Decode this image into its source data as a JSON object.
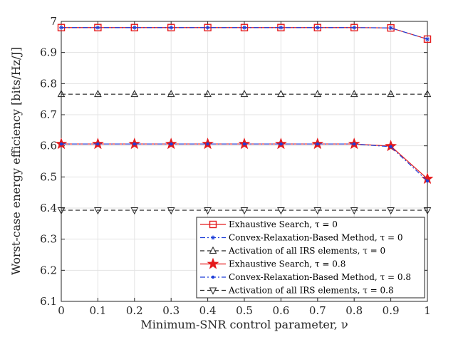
{
  "chart_data": {
    "type": "line",
    "xlabel": "Minimum-SNR control parameter, ν",
    "ylabel": "Worst-case energy efficiency [bits/Hz/J]",
    "xlim": [
      0,
      1
    ],
    "ylim": [
      6.1,
      7
    ],
    "x": [
      0,
      0.1,
      0.2,
      0.3,
      0.4,
      0.5,
      0.6,
      0.7,
      0.8,
      0.9,
      1
    ],
    "xticks": [
      "0",
      "0.1",
      "0.2",
      "0.3",
      "0.4",
      "0.5",
      "0.6",
      "0.7",
      "0.8",
      "0.9",
      "1"
    ],
    "yticks": [
      "6.1",
      "6.2",
      "6.3",
      "6.4",
      "6.5",
      "6.6",
      "6.7",
      "6.8",
      "6.9",
      "7"
    ],
    "grid": true,
    "legend_position": "bottom-right",
    "series": [
      {
        "name": "Exhaustive Search, τ = 0",
        "color": "#e41a1c",
        "dash": "solid",
        "marker": "square",
        "values": [
          6.98,
          6.98,
          6.98,
          6.98,
          6.98,
          6.98,
          6.98,
          6.98,
          6.98,
          6.979,
          6.943
        ]
      },
      {
        "name": "Convex-Relaxation-Based Method, τ = 0",
        "color": "#1f3fd8",
        "dash": "dashdot",
        "marker": "asterisk",
        "values": [
          6.98,
          6.98,
          6.98,
          6.98,
          6.98,
          6.98,
          6.98,
          6.98,
          6.98,
          6.979,
          6.943
        ]
      },
      {
        "name": "Activation of all IRS elements, τ = 0",
        "color": "#222222",
        "dash": "dashed",
        "marker": "triangle-up",
        "values": [
          6.766,
          6.766,
          6.766,
          6.766,
          6.766,
          6.766,
          6.766,
          6.766,
          6.766,
          6.766,
          6.766
        ]
      },
      {
        "name": "Exhaustive Search, τ = 0.8",
        "color": "#e41a1c",
        "dash": "solid",
        "marker": "star",
        "values": [
          6.606,
          6.606,
          6.606,
          6.606,
          6.606,
          6.606,
          6.606,
          6.606,
          6.606,
          6.599,
          6.494
        ]
      },
      {
        "name": "Convex-Relaxation-Based Method, τ = 0.8",
        "color": "#1f3fd8",
        "dash": "dashdot",
        "marker": "dot",
        "values": [
          6.606,
          6.606,
          6.606,
          6.606,
          6.606,
          6.606,
          6.606,
          6.606,
          6.606,
          6.597,
          6.487
        ]
      },
      {
        "name": "Activation of all IRS elements, τ = 0.8",
        "color": "#222222",
        "dash": "dashed",
        "marker": "triangle-down",
        "values": [
          6.393,
          6.393,
          6.393,
          6.393,
          6.393,
          6.393,
          6.393,
          6.393,
          6.393,
          6.393,
          6.393
        ]
      }
    ]
  }
}
